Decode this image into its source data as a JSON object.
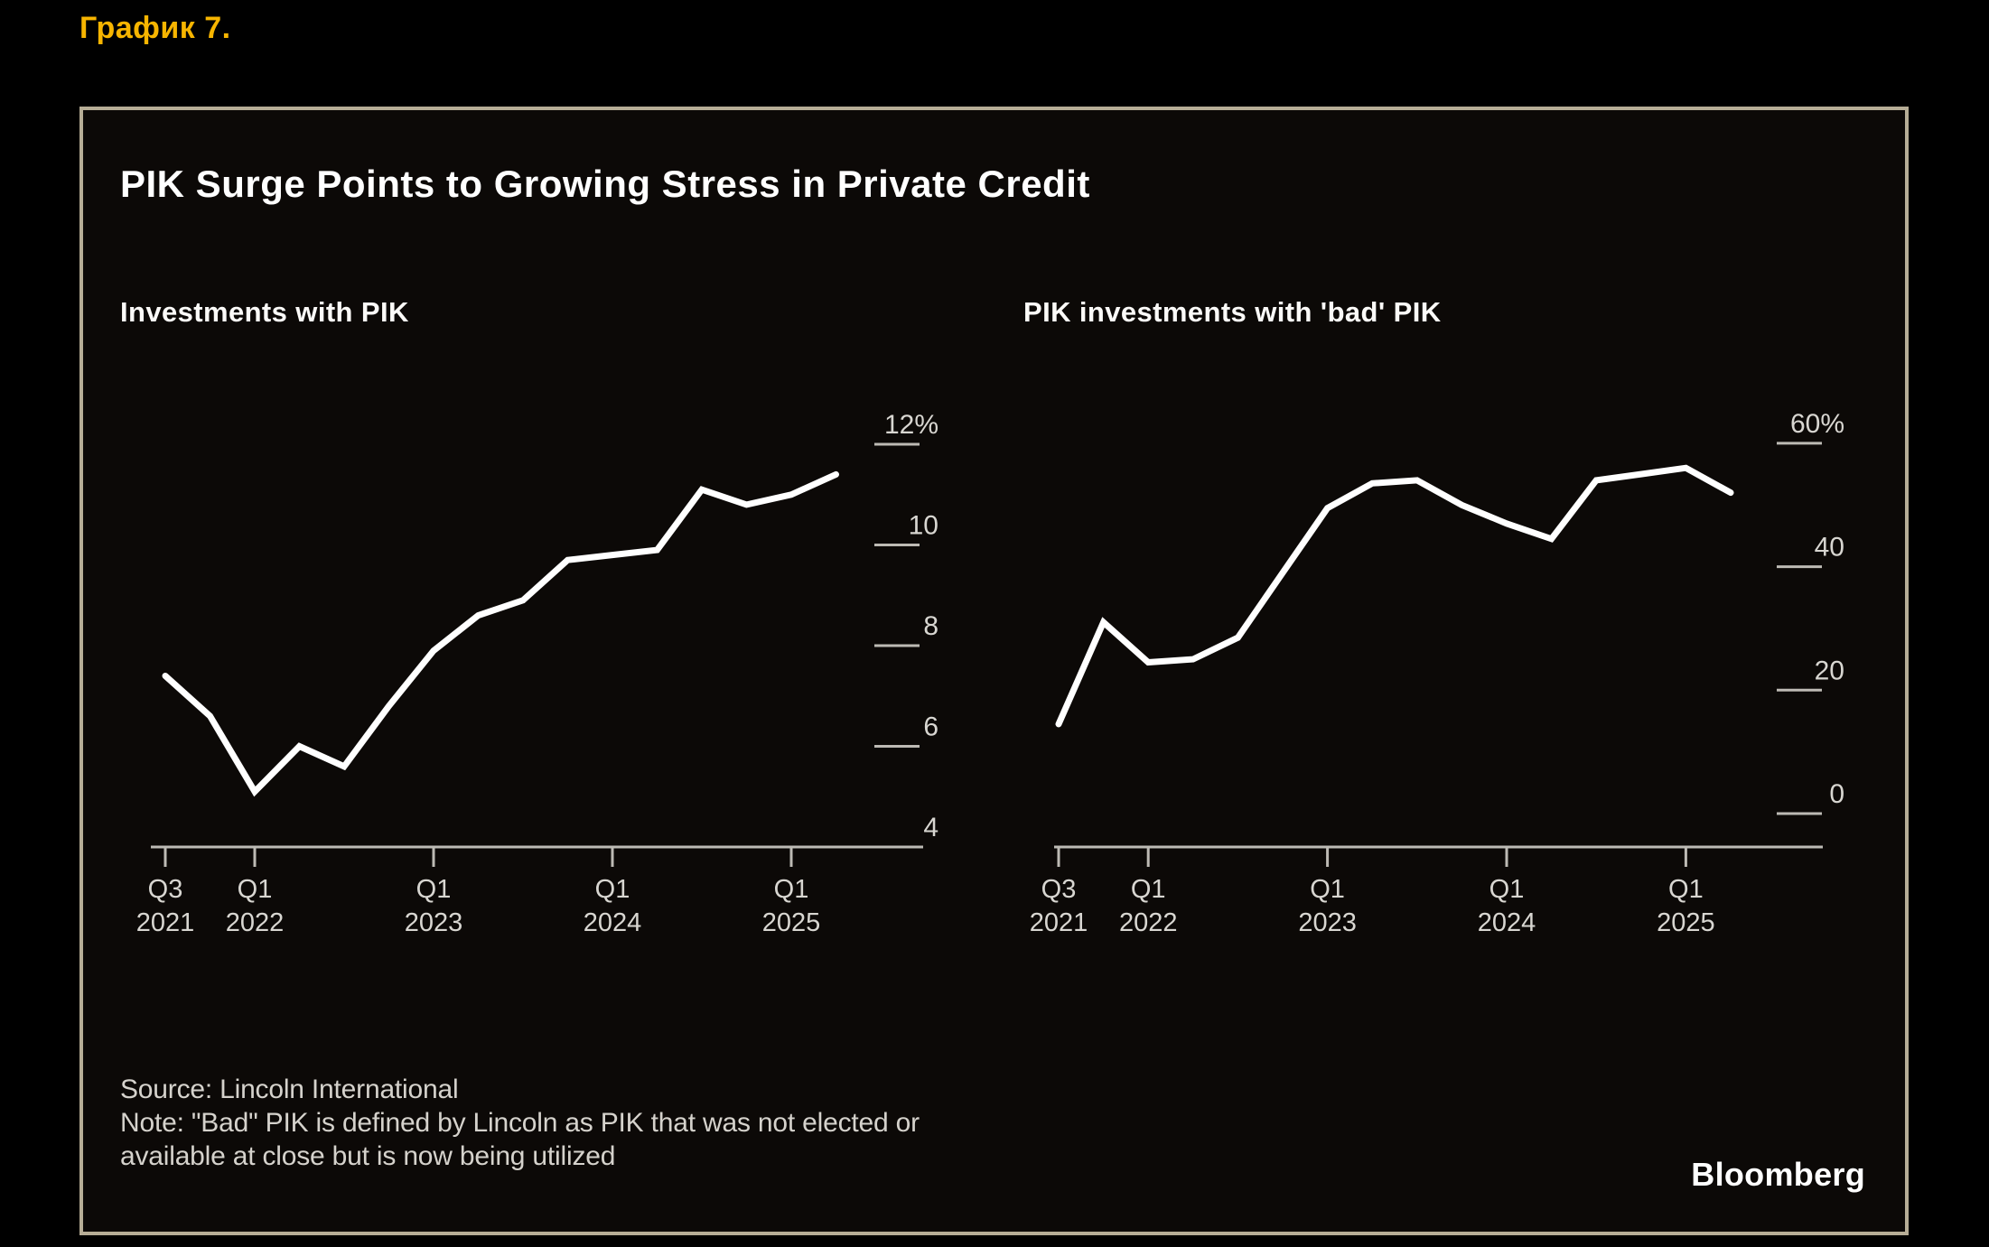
{
  "page": {
    "heading": "График 7."
  },
  "panel": {
    "title": "PIK Surge Points to Growing Stress in Private Credit",
    "source_line": "Source: Lincoln International",
    "note_line1": "Note: \"Bad\" PIK is defined by Lincoln as PIK that was not elected or",
    "note_line2": "available at close but is now being utilized",
    "logo": "Bloomberg"
  },
  "colors": {
    "accent_yellow": "#f7b500",
    "line": "#ffffff",
    "axis": "#bdbab4",
    "tick_text": "#d8d6d1",
    "panel_border": "#b6ad96",
    "panel_bg": "#0c0907",
    "page_bg": "#000000"
  },
  "chart_data": [
    {
      "type": "line",
      "title": "Investments with PIK",
      "unit": "%",
      "x": [
        "Q3 2021",
        "Q4 2021",
        "Q1 2022",
        "Q2 2022",
        "Q3 2022",
        "Q4 2022",
        "Q1 2023",
        "Q2 2023",
        "Q3 2023",
        "Q4 2023",
        "Q1 2024",
        "Q2 2024",
        "Q3 2024",
        "Q4 2024",
        "Q1 2025",
        "Q2 2025"
      ],
      "values": [
        7.4,
        6.6,
        5.1,
        6.0,
        5.6,
        6.8,
        7.9,
        8.6,
        8.9,
        9.7,
        9.8,
        9.9,
        11.1,
        10.8,
        11.0,
        11.4
      ],
      "ylim": [
        4,
        12
      ],
      "grid": "right-side tick dashes",
      "legend": "none",
      "yticks": [
        {
          "label": "12%",
          "value": 12
        },
        {
          "label": "10",
          "value": 10
        },
        {
          "label": "8",
          "value": 8
        },
        {
          "label": "6",
          "value": 6
        },
        {
          "label": "4",
          "value": 4
        }
      ],
      "xticks": [
        {
          "top": "Q3",
          "bottom": "2021",
          "i": 0
        },
        {
          "top": "Q1",
          "bottom": "2022",
          "i": 2
        },
        {
          "top": "Q1",
          "bottom": "2023",
          "i": 6
        },
        {
          "top": "Q1",
          "bottom": "2024",
          "i": 10
        },
        {
          "top": "Q1",
          "bottom": "2025",
          "i": 14
        }
      ]
    },
    {
      "type": "line",
      "title": "PIK investments with 'bad' PIK",
      "unit": "%",
      "x": [
        "Q3 2021",
        "Q4 2021",
        "Q1 2022",
        "Q2 2022",
        "Q3 2022",
        "Q4 2022",
        "Q1 2023",
        "Q2 2023",
        "Q3 2023",
        "Q4 2023",
        "Q1 2024",
        "Q2 2024",
        "Q3 2024",
        "Q4 2024",
        "Q1 2025",
        "Q2 2025"
      ],
      "values": [
        14.5,
        31,
        24.5,
        25,
        28.5,
        39,
        49.5,
        53.5,
        54,
        50,
        47,
        44.5,
        54,
        55,
        56,
        52
      ],
      "ylim": [
        0,
        60
      ],
      "grid": "right-side tick dashes",
      "legend": "none",
      "yticks": [
        {
          "label": "60%",
          "value": 60
        },
        {
          "label": "40",
          "value": 40
        },
        {
          "label": "20",
          "value": 20
        },
        {
          "label": "0",
          "value": 0
        }
      ],
      "xticks": [
        {
          "top": "Q3",
          "bottom": "2021",
          "i": 0
        },
        {
          "top": "Q1",
          "bottom": "2022",
          "i": 2
        },
        {
          "top": "Q1",
          "bottom": "2023",
          "i": 6
        },
        {
          "top": "Q1",
          "bottom": "2024",
          "i": 10
        },
        {
          "top": "Q1",
          "bottom": "2025",
          "i": 14
        }
      ]
    }
  ]
}
